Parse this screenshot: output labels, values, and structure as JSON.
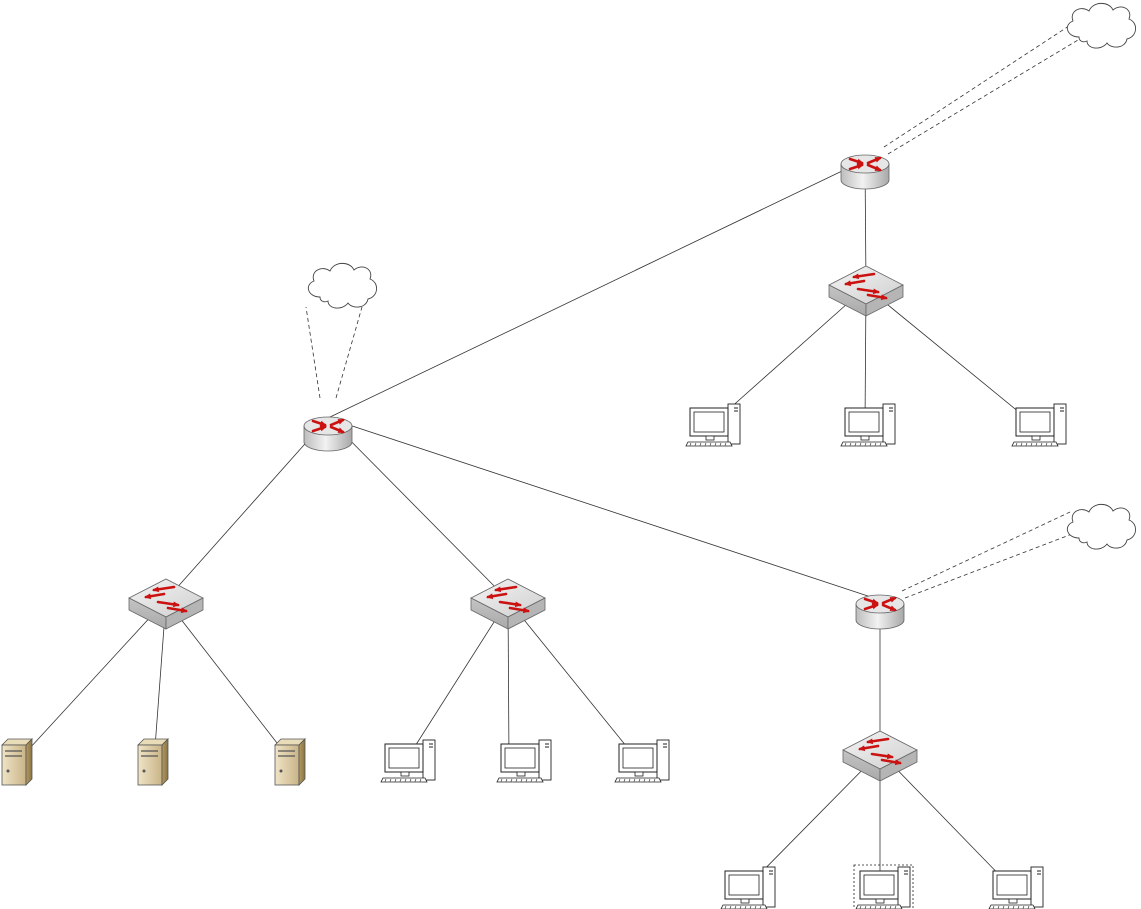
{
  "diagram": {
    "type": "network-topology",
    "colors": {
      "line": "#333333",
      "arrow": "#cc1111",
      "device_body": "#d4d4d4",
      "server_body": "#d8c9a4"
    },
    "nodes": [
      {
        "id": "cloud-center",
        "icon": "cloud-icon"
      },
      {
        "id": "cloud-top",
        "icon": "cloud-icon"
      },
      {
        "id": "cloud-right",
        "icon": "cloud-icon"
      },
      {
        "id": "router-center",
        "icon": "router-icon"
      },
      {
        "id": "router-top",
        "icon": "router-icon"
      },
      {
        "id": "router-right",
        "icon": "router-icon"
      },
      {
        "id": "switch-servers",
        "icon": "switch-icon"
      },
      {
        "id": "switch-center-pcs",
        "icon": "switch-icon"
      },
      {
        "id": "switch-top",
        "icon": "switch-icon"
      },
      {
        "id": "switch-right",
        "icon": "switch-icon"
      },
      {
        "id": "server-1",
        "icon": "server-icon"
      },
      {
        "id": "server-2",
        "icon": "server-icon"
      },
      {
        "id": "server-3",
        "icon": "server-icon"
      },
      {
        "id": "pc-c1",
        "icon": "pc-icon"
      },
      {
        "id": "pc-c2",
        "icon": "pc-icon"
      },
      {
        "id": "pc-c3",
        "icon": "pc-icon"
      },
      {
        "id": "pc-t1",
        "icon": "pc-icon"
      },
      {
        "id": "pc-t2",
        "icon": "pc-icon"
      },
      {
        "id": "pc-t3",
        "icon": "pc-icon"
      },
      {
        "id": "pc-r1",
        "icon": "pc-icon"
      },
      {
        "id": "pc-r2",
        "icon": "pc-icon",
        "selected": true
      },
      {
        "id": "pc-r3",
        "icon": "pc-icon"
      }
    ],
    "edges": [
      {
        "from": "router-center",
        "to": "router-top",
        "style": "solid"
      },
      {
        "from": "router-center",
        "to": "router-right",
        "style": "solid"
      },
      {
        "from": "router-center",
        "to": "switch-servers",
        "style": "solid"
      },
      {
        "from": "router-center",
        "to": "switch-center-pcs",
        "style": "solid"
      },
      {
        "from": "router-top",
        "to": "switch-top",
        "style": "solid"
      },
      {
        "from": "router-right",
        "to": "switch-right",
        "style": "solid"
      },
      {
        "from": "switch-servers",
        "to": "server-1",
        "style": "solid"
      },
      {
        "from": "switch-servers",
        "to": "server-2",
        "style": "solid"
      },
      {
        "from": "switch-servers",
        "to": "server-3",
        "style": "solid"
      },
      {
        "from": "switch-center-pcs",
        "to": "pc-c1",
        "style": "solid"
      },
      {
        "from": "switch-center-pcs",
        "to": "pc-c2",
        "style": "solid"
      },
      {
        "from": "switch-center-pcs",
        "to": "pc-c3",
        "style": "solid"
      },
      {
        "from": "switch-top",
        "to": "pc-t1",
        "style": "solid"
      },
      {
        "from": "switch-top",
        "to": "pc-t2",
        "style": "solid"
      },
      {
        "from": "switch-top",
        "to": "pc-t3",
        "style": "solid"
      },
      {
        "from": "switch-right",
        "to": "pc-r1",
        "style": "solid"
      },
      {
        "from": "switch-right",
        "to": "pc-r2",
        "style": "solid"
      },
      {
        "from": "switch-right",
        "to": "pc-r3",
        "style": "solid"
      },
      {
        "from": "router-center",
        "to": "cloud-center",
        "style": "dashed-pair"
      },
      {
        "from": "router-top",
        "to": "cloud-top",
        "style": "dashed-pair"
      },
      {
        "from": "router-right",
        "to": "cloud-right",
        "style": "dashed-pair"
      }
    ]
  }
}
